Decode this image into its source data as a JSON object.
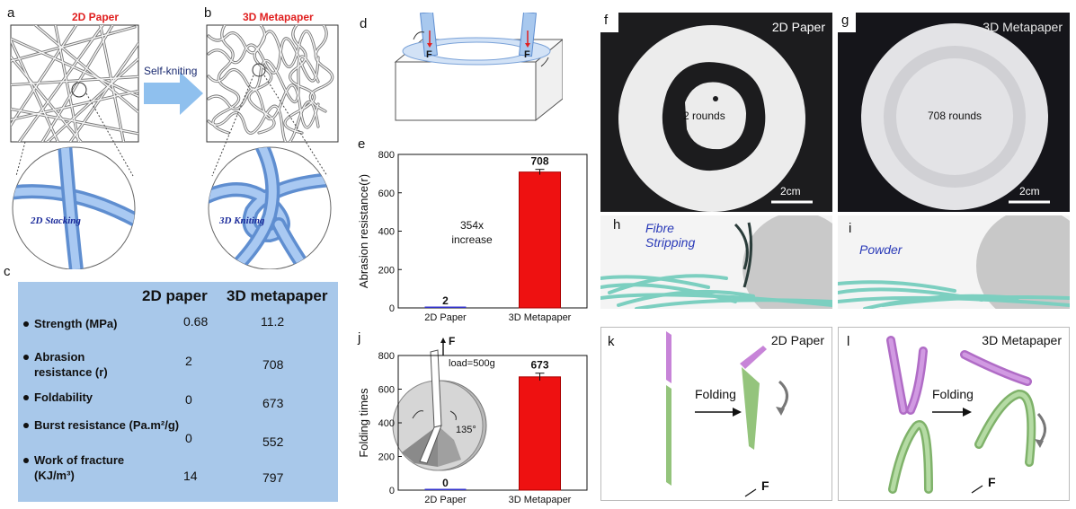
{
  "panel_letters": {
    "a": "a",
    "b": "b",
    "c": "c",
    "d": "d",
    "e": "e",
    "f": "f",
    "g": "g",
    "h": "h",
    "i": "i",
    "j": "j",
    "k": "k",
    "l": "l"
  },
  "panel_a": {
    "title": "2D  Paper",
    "circle_label": "2D Stacking"
  },
  "panel_b": {
    "title": "3D Metapaper",
    "circle_label": "3D Kniting"
  },
  "arrow_label": "Self-kniting",
  "panel_d": {
    "force": "F"
  },
  "table": {
    "headers": [
      "2D paper",
      "3D metapaper"
    ],
    "rows": [
      {
        "label": "Strength (MPa)",
        "paper": "0.68",
        "meta": "11.2"
      },
      {
        "label": "Abrasion resistance (r)",
        "paper": "2",
        "meta": "708"
      },
      {
        "label": "Foldability",
        "paper": "0",
        "meta": "673"
      },
      {
        "label": "Burst resistance (Pa.m²/g)",
        "paper": "0",
        "meta": "552"
      },
      {
        "label": "Work of fracture (KJ/m³)",
        "paper": "14",
        "meta": "797"
      }
    ]
  },
  "panel_f": {
    "title": "2D Paper",
    "center": "2 rounds",
    "scale": "2cm"
  },
  "panel_g": {
    "title": "3D Metapaper",
    "center": "708 rounds",
    "scale": "2cm"
  },
  "panel_h": {
    "label": "Fibre Stripping"
  },
  "panel_i": {
    "label": "Powder"
  },
  "panel_k": {
    "title": "2D Paper",
    "action": "Folding",
    "force": "F"
  },
  "panel_l": {
    "title": "3D Metapaper",
    "action": "Folding",
    "force": "F"
  },
  "chart_data": [
    {
      "type": "bar",
      "categories": [
        "2D Paper",
        "3D Metapaper"
      ],
      "values": [
        2,
        708
      ],
      "error": [
        0,
        14
      ],
      "value_labels": [
        "2",
        "708"
      ],
      "ylabel": "Abrasion resistance(r)",
      "ylim": [
        0,
        800
      ],
      "yticks": [
        "0",
        "200",
        "400",
        "600",
        "800"
      ],
      "annotation": "354x\nincrease",
      "colors": [
        "#3333cc",
        "#ee1111"
      ]
    },
    {
      "type": "bar",
      "categories": [
        "2D Paper",
        "3D Metapaper"
      ],
      "values": [
        0,
        673
      ],
      "error": [
        0,
        22
      ],
      "value_labels": [
        "0",
        "673"
      ],
      "ylabel": "Folding times",
      "ylim": [
        0,
        800
      ],
      "yticks": [
        "0",
        "200",
        "400",
        "600",
        "800"
      ],
      "inset_force": "F",
      "inset_load": "load=500g",
      "inset_angle": "135°",
      "colors": [
        "#3333cc",
        "#ee1111"
      ]
    }
  ]
}
